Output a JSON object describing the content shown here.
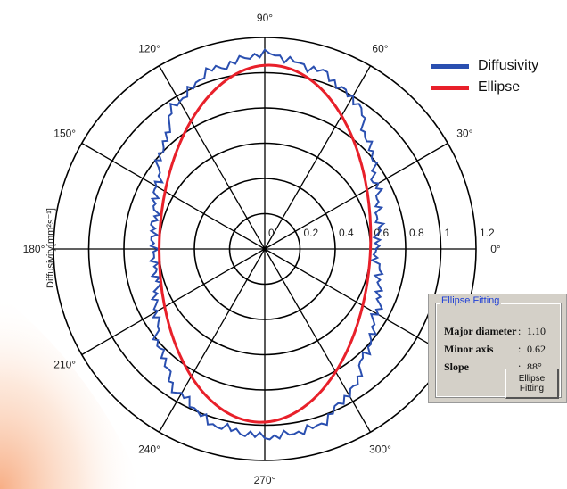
{
  "chart_data": {
    "type": "polar-line",
    "ylabel": "Diffusivity[mm²s⁻¹]",
    "radial_ticks": [
      "0",
      "0.2",
      "0.4",
      "0.6",
      "0.8",
      "1",
      "1.2"
    ],
    "rmax": 1.2,
    "angle_labels": [
      {
        "deg": 0,
        "label": "0°"
      },
      {
        "deg": 30,
        "label": "30°"
      },
      {
        "deg": 60,
        "label": "60°"
      },
      {
        "deg": 90,
        "label": "90°"
      },
      {
        "deg": 120,
        "label": "120°"
      },
      {
        "deg": 150,
        "label": "150°"
      },
      {
        "deg": 180,
        "label": "180°"
      },
      {
        "deg": 210,
        "label": "210°"
      },
      {
        "deg": 240,
        "label": "240°"
      },
      {
        "deg": 270,
        "label": "270°"
      },
      {
        "deg": 300,
        "label": "300°"
      }
    ],
    "grid": true,
    "series": [
      {
        "name": "Diffusivity",
        "color": "#2a4fb0",
        "theta_deg": [
          0,
          15,
          30,
          45,
          60,
          75,
          90,
          105,
          120,
          135,
          150,
          165,
          180,
          195,
          210,
          225,
          240,
          255,
          270,
          285,
          300,
          315,
          330,
          345
        ],
        "r": [
          0.62,
          0.66,
          0.74,
          0.84,
          0.98,
          1.06,
          1.12,
          1.06,
          0.96,
          0.82,
          0.72,
          0.64,
          0.62,
          0.64,
          0.72,
          0.82,
          0.95,
          1.05,
          1.07,
          1.04,
          0.95,
          0.83,
          0.73,
          0.66
        ]
      },
      {
        "name": "Ellipse",
        "color": "#e8202a",
        "major": 1.1,
        "minor": 0.62,
        "slope_deg": 88
      }
    ],
    "legend_position": "top-right"
  },
  "legend": [
    {
      "label": "Diffusivity",
      "color": "#2a4fb0"
    },
    {
      "label": "Ellipse",
      "color": "#e8202a"
    }
  ],
  "panel": {
    "title": "Ellipse Fitting",
    "rows": [
      {
        "label": "Major diameter",
        "value": "1.10"
      },
      {
        "label": "Minor axis",
        "value": "0.62"
      },
      {
        "label": "Slope",
        "value": "88°"
      }
    ],
    "button_label": "Ellipse\nFitting"
  }
}
